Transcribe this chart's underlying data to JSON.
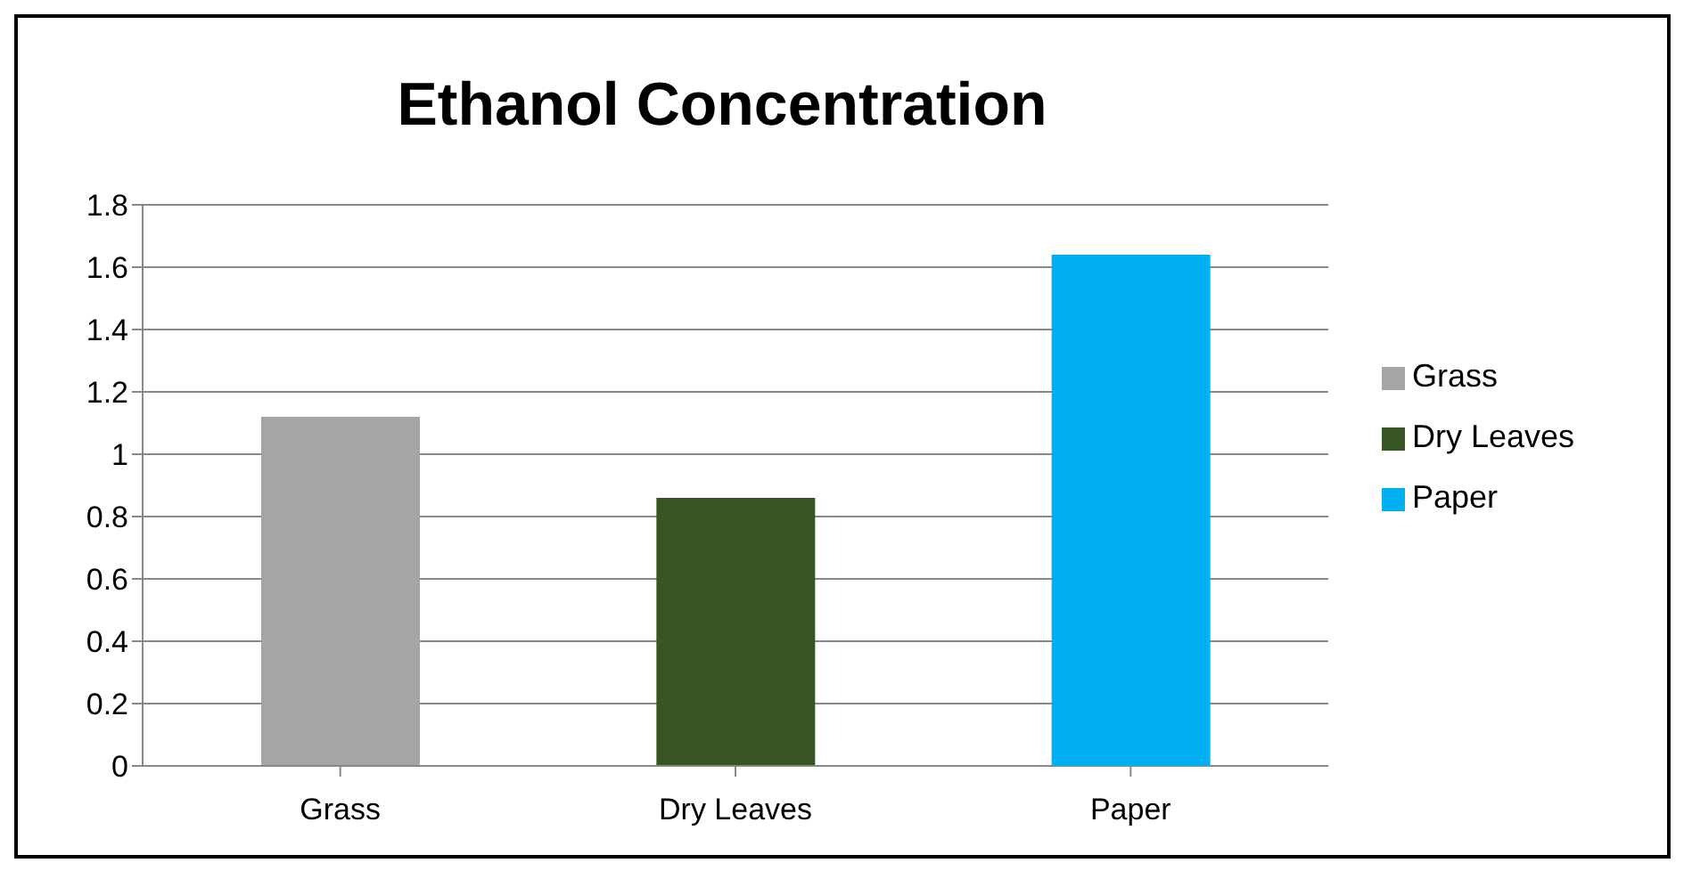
{
  "chart_data": {
    "type": "bar",
    "title": "Ethanol Concentration",
    "categories": [
      "Grass",
      "Dry Leaves",
      "Paper"
    ],
    "series": [
      {
        "name": "Grass",
        "color": "#a5a5a5",
        "values": [
          1.12,
          null,
          null
        ]
      },
      {
        "name": "Dry Leaves",
        "color": "#375623",
        "values": [
          null,
          0.86,
          null
        ]
      },
      {
        "name": "Paper",
        "color": "#00b0f0",
        "values": [
          null,
          null,
          1.64
        ]
      }
    ],
    "ylim": [
      0,
      1.8
    ],
    "yticks": [
      0,
      0.2,
      0.4,
      0.6,
      0.8,
      1,
      1.2,
      1.4,
      1.6,
      1.8
    ],
    "grid": "y",
    "legend": "right"
  }
}
